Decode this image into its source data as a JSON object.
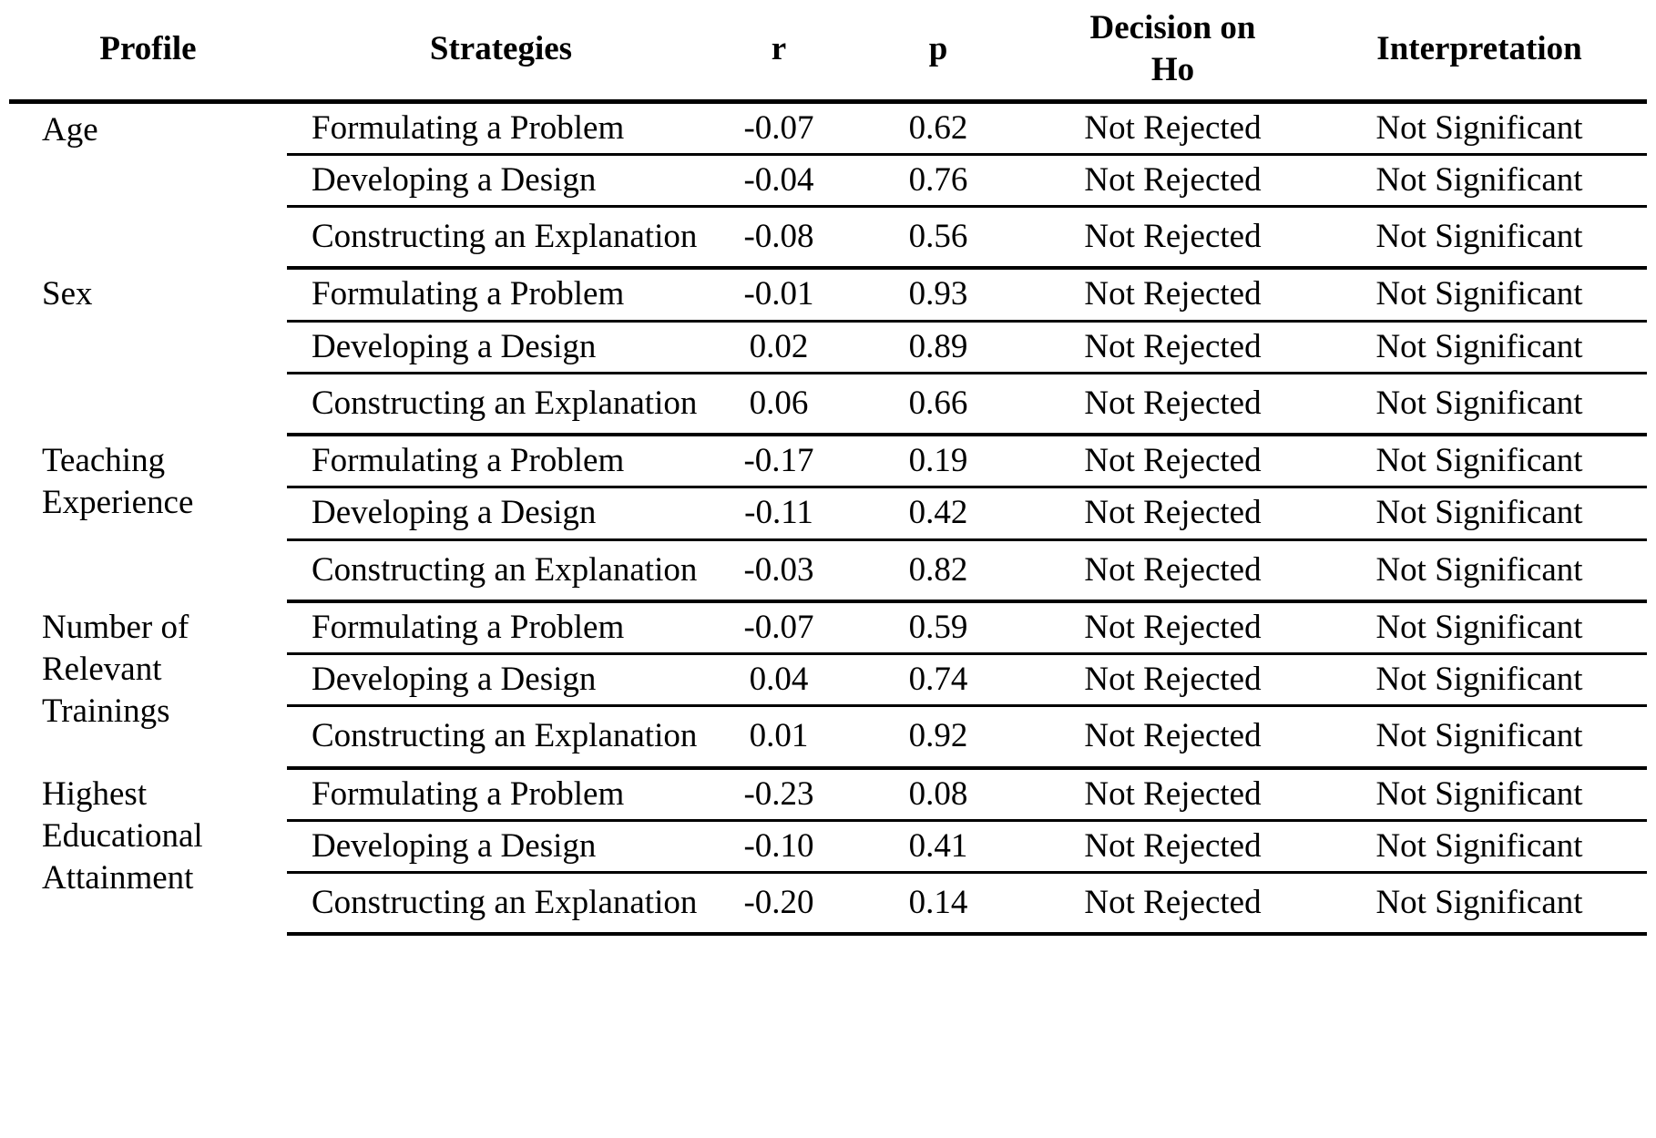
{
  "colors": {
    "text": "#000000",
    "background": "#ffffff",
    "rules": "#000000"
  },
  "table": {
    "header": {
      "profile": "Profile",
      "strategies": "Strategies",
      "r": "r",
      "p": "p",
      "decision": "Decision on Ho",
      "interpretation": "Interpretation"
    },
    "groups": [
      {
        "profile": "Age",
        "rows": [
          {
            "strategy": "Formulating a Problem",
            "r": "-0.07",
            "p": "0.62",
            "decision": "Not Rejected",
            "interpretation": "Not Significant"
          },
          {
            "strategy": "Developing a Design",
            "r": "-0.04",
            "p": "0.76",
            "decision": "Not Rejected",
            "interpretation": "Not Significant"
          },
          {
            "strategy": "Constructing an Explanation",
            "r": "-0.08",
            "p": "0.56",
            "decision": "Not Rejected",
            "interpretation": "Not Significant"
          }
        ]
      },
      {
        "profile": "Sex",
        "rows": [
          {
            "strategy": "Formulating a Problem",
            "r": "-0.01",
            "p": "0.93",
            "decision": "Not Rejected",
            "interpretation": "Not Significant"
          },
          {
            "strategy": "Developing a Design",
            "r": "0.02",
            "p": "0.89",
            "decision": "Not Rejected",
            "interpretation": "Not Significant"
          },
          {
            "strategy": "Constructing an Explanation",
            "r": "0.06",
            "p": "0.66",
            "decision": "Not Rejected",
            "interpretation": "Not Significant"
          }
        ]
      },
      {
        "profile": "Teaching Experience",
        "rows": [
          {
            "strategy": "Formulating a Problem",
            "r": "-0.17",
            "p": "0.19",
            "decision": "Not Rejected",
            "interpretation": "Not Significant"
          },
          {
            "strategy": "Developing a Design",
            "r": "-0.11",
            "p": "0.42",
            "decision": "Not Rejected",
            "interpretation": "Not Significant"
          },
          {
            "strategy": "Constructing an Explanation",
            "r": "-0.03",
            "p": "0.82",
            "decision": "Not Rejected",
            "interpretation": "Not Significant"
          }
        ]
      },
      {
        "profile": "Number of Relevant Trainings",
        "rows": [
          {
            "strategy": "Formulating a Problem",
            "r": "-0.07",
            "p": "0.59",
            "decision": "Not Rejected",
            "interpretation": "Not Significant"
          },
          {
            "strategy": "Developing a Design",
            "r": "0.04",
            "p": "0.74",
            "decision": "Not Rejected",
            "interpretation": "Not Significant"
          },
          {
            "strategy": "Constructing an Explanation",
            "r": "0.01",
            "p": "0.92",
            "decision": "Not Rejected",
            "interpretation": "Not Significant"
          }
        ]
      },
      {
        "profile": "Highest Educational Attainment",
        "rows": [
          {
            "strategy": "Formulating a Problem",
            "r": "-0.23",
            "p": "0.08",
            "decision": "Not Rejected",
            "interpretation": "Not Significant"
          },
          {
            "strategy": "Developing a Design",
            "r": "-0.10",
            "p": "0.41",
            "decision": "Not Rejected",
            "interpretation": "Not Significant"
          },
          {
            "strategy": "Constructing an Explanation",
            "r": "-0.20",
            "p": "0.14",
            "decision": "Not Rejected",
            "interpretation": "Not Significant"
          }
        ]
      }
    ]
  }
}
